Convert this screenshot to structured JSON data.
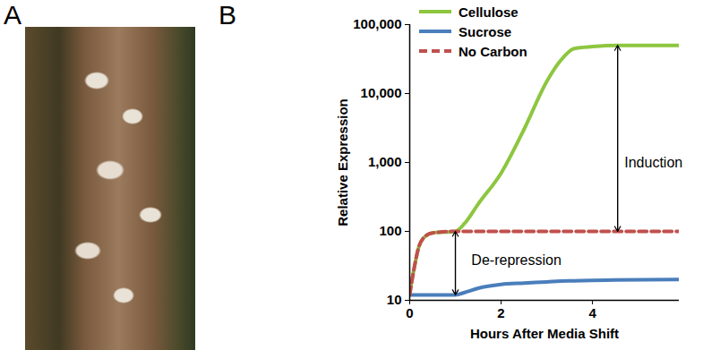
{
  "panel_labels": [
    "A",
    "B"
  ],
  "chart_data": {
    "type": "line",
    "x_label": "Hours After Media Shift",
    "y_label": "Relative Expression",
    "x": [
      0,
      0.1,
      0.2,
      0.3,
      0.5,
      1,
      1.2,
      1.5,
      2,
      2.5,
      3,
      3.3,
      3.6,
      4,
      4.5,
      5.9
    ],
    "series": [
      {
        "name": "Cellulose",
        "color": "#8dc63f",
        "line_style": "solid",
        "values": [
          13,
          30,
          60,
          80,
          95,
          100,
          130,
          250,
          700,
          3000,
          15000,
          30000,
          45000,
          48000,
          50000,
          50000
        ]
      },
      {
        "name": "Sucrose",
        "color": "#4a7ebb",
        "line_style": "solid",
        "values": [
          12,
          12,
          12,
          12,
          12,
          12,
          13,
          15,
          17,
          17.8,
          18.5,
          19,
          19.2,
          19.5,
          19.7,
          20
        ]
      },
      {
        "name": "No Carbon",
        "color": "#c0504d",
        "line_style": "dashed",
        "values": [
          12,
          30,
          60,
          80,
          95,
          100,
          100,
          100,
          100,
          100,
          100,
          100,
          100,
          100,
          100,
          100
        ]
      }
    ],
    "log": "y",
    "xlim": [
      0,
      5.9
    ],
    "xticks": [
      0,
      2,
      4
    ],
    "ylim": [
      10,
      100000
    ],
    "yticks": [
      10,
      100,
      {
        "value": 1000,
        "label": "1,000"
      },
      {
        "value": 10000,
        "label": "10,000"
      },
      {
        "value": 100000,
        "label": "100,000"
      }
    ],
    "legend": "top-left",
    "annotations": [
      {
        "text": "Induction",
        "x": 4.7,
        "y": 1000,
        "arrow": {
          "x": 4.55,
          "y1": 100,
          "y2": 50000
        }
      },
      {
        "text": "De-repression",
        "x": 1.35,
        "y": 38,
        "arrow": {
          "x": 1,
          "y1": 12,
          "y2": 100
        }
      }
    ]
  }
}
